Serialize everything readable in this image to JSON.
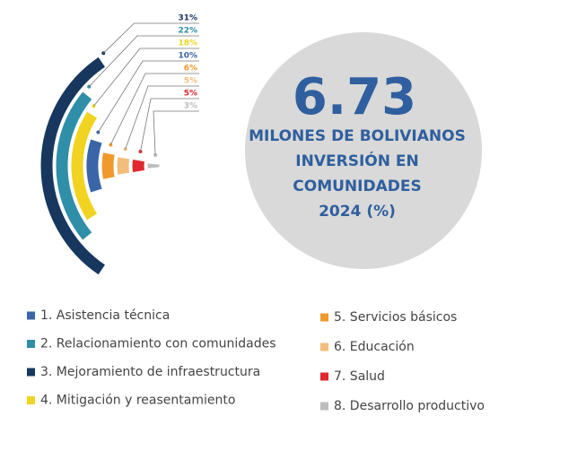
{
  "chart_data": {
    "type": "radial_bar",
    "categories": [
      "1. Asistencia técnica",
      "2. Relacionamiento con comunidades",
      "3. Mejoramiento de infraestructura",
      "4. Mitigación y reasentamiento",
      "5. Servicios básicos",
      "6. Educación",
      "7. Salud",
      "8. Desarrollo productivo"
    ],
    "values": [
      10,
      22,
      31,
      18,
      6,
      5,
      5,
      3
    ],
    "value_labels": [
      "10%",
      "22%",
      "31%",
      "18%",
      "6%",
      "5%",
      "5%",
      "3%"
    ],
    "colors": [
      "#3a66a8",
      "#2f8ea8",
      "#17375e",
      "#f0d421",
      "#f09a2e",
      "#f3bd7c",
      "#e0282f",
      "#bdbdbd"
    ],
    "center_value": "6.73",
    "center_text": [
      "MILONES DE BOLIVIANOS",
      "INVERSIÓN EN",
      "COMUNIDADES",
      "2024 (%)"
    ]
  }
}
